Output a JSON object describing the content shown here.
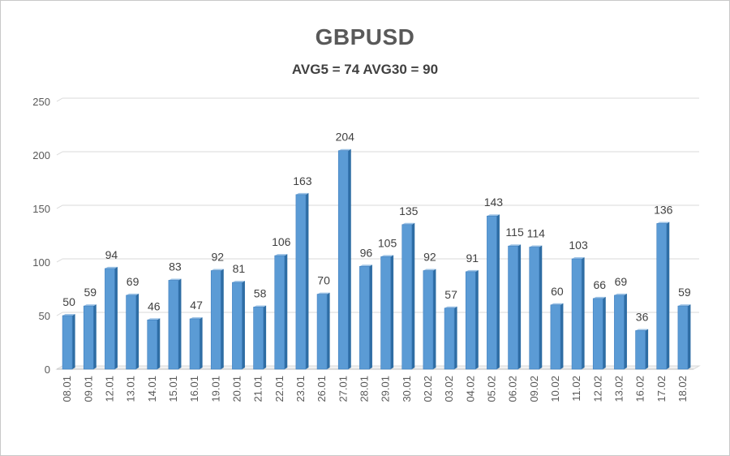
{
  "title": "GBPUSD",
  "subtitle": "AVG5 = 74 AVG30 = 90",
  "colors": {
    "bar_front": "#5b9bd5",
    "bar_side": "#2e6da4",
    "bar_top": "#9dc3e6",
    "grid": "#d9d9d9",
    "text": "#595959"
  },
  "chart_data": {
    "type": "bar",
    "title": "GBPUSD",
    "subtitle": "AVG5 = 74 AVG30 = 90",
    "xlabel": "",
    "ylabel": "",
    "ylim": [
      0,
      250
    ],
    "yticks": [
      0,
      50,
      100,
      150,
      200,
      250
    ],
    "grid": true,
    "categories": [
      "08.01",
      "09.01",
      "12.01",
      "13.01",
      "14.01",
      "15.01",
      "16.01",
      "19.01",
      "20.01",
      "21.01",
      "22.01",
      "23.01",
      "26.01",
      "27.01",
      "28.01",
      "29.01",
      "30.01",
      "02.02",
      "03.02",
      "04.02",
      "05.02",
      "06.02",
      "09.02",
      "10.02",
      "11.02",
      "12.02",
      "13.02",
      "16.02",
      "17.02",
      "18.02"
    ],
    "values": [
      50,
      59,
      94,
      69,
      46,
      83,
      47,
      92,
      81,
      58,
      106,
      163,
      70,
      204,
      96,
      105,
      135,
      92,
      57,
      91,
      143,
      115,
      114,
      60,
      103,
      66,
      69,
      36,
      136,
      59
    ]
  }
}
